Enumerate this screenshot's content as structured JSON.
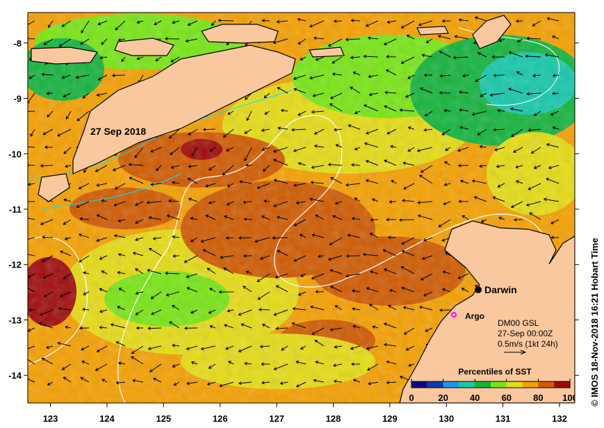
{
  "map": {
    "date_label": "27 Sep 2018",
    "places": [
      {
        "name": "Darwin",
        "lon": 130.85,
        "lat": -12.45,
        "marker": "black-dot"
      },
      {
        "name": "Argo",
        "lon": 130.3,
        "lat": -12.9,
        "marker": "magenta-circle"
      }
    ],
    "annotation": {
      "model": "DM00 GSL",
      "time": "27-Sep 00:00Z",
      "scale": "0.5m/s (1kt 24h)"
    },
    "lon_range": [
      122.6,
      132.27
    ],
    "lat_range": [
      -14.5,
      -7.45
    ],
    "x_ticks": [
      "123",
      "124",
      "125",
      "126",
      "127",
      "128",
      "129",
      "130",
      "131",
      "132"
    ],
    "y_ticks": [
      "-8",
      "-9",
      "-10",
      "-11",
      "-12",
      "-13",
      "-14"
    ],
    "copyright": "© IMOS 18-Nov-2018 16:21 Hobart Time"
  },
  "legend": {
    "title": "Percentiles of SST",
    "ticks": [
      "0",
      "20",
      "40",
      "60",
      "80",
      "100"
    ],
    "colors": [
      "#0a0a80",
      "#0a3cb0",
      "#1e96e6",
      "#14c8aa",
      "#14b43c",
      "#78e614",
      "#e6dc14",
      "#f5a000",
      "#d05a00",
      "#a00a0a"
    ]
  },
  "colors": {
    "land": "#fac89e",
    "current_contour": "#ffffff",
    "shelf_contour": "#00e5ff"
  }
}
